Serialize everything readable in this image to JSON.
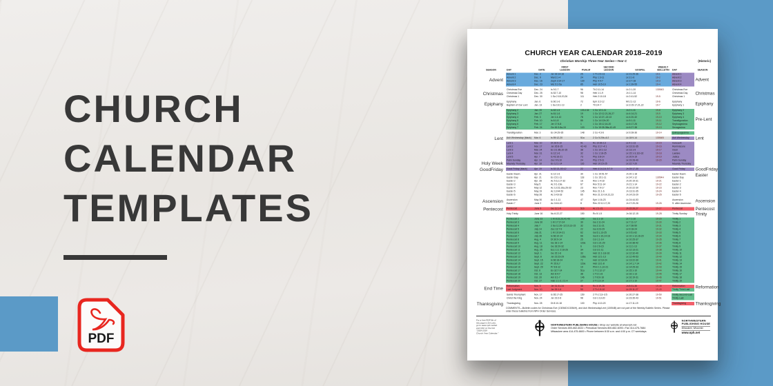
{
  "hero": {
    "line1": "CHURCH",
    "line2": "CALENDAR",
    "line3": "TEMPLATES"
  },
  "pdf": {
    "label": "PDF"
  },
  "colors": {
    "panel_blue": "#5b9ac7",
    "hl_blue": "#69aadd",
    "hl_green": "#64bf8e",
    "hl_purple": "#9c8ac3",
    "hl_red": "#f25f6b",
    "hl_gray": "#d9d9d9",
    "pdf_red": "#e8261f",
    "title_gray": "#383838"
  },
  "calendar": {
    "title": "CHURCH YEAR CALENDAR 2018–2019",
    "subtitle": "Christian Worship Three-Year Series—Year C",
    "subtitle_right": "(Historic)",
    "columns": [
      "SEASON",
      "DAY",
      "DATE",
      "FIRST\nLESSON",
      "PSALM",
      "SECOND\nLESSON",
      "GOSPEL",
      "WEEKLY\nBULLETIN",
      "DAY",
      "SEASON"
    ],
    "sections": [
      {
        "left": "Advent",
        "right": "Advent",
        "rows": [
          [
            "Advent 1",
            "Dec. 2",
            "Jer 33:14-16",
            "25",
            "1 Th 3:9-13",
            "Lk 21:25-36",
            "19-1",
            "Advent 1",
            "blue",
            "purple"
          ],
          [
            "Advent 2",
            "Dec. 9",
            "Mal 3:1-4",
            "24",
            "Php 1:3-11",
            "Lk 3:1-6",
            "19-2",
            "Advent 2",
            "blue",
            "purple"
          ],
          [
            "Advent 3",
            "Dec. 16",
            "Zeph 3:14-17",
            "130",
            "Php 4:4-7",
            "Lk 3:7-18",
            "19-3",
            "Advent 3",
            "blue",
            "purple"
          ],
          [
            "Advent 4",
            "Dec. 23",
            "Mic 5:2-5a",
            "85",
            "Heb 10:5-10",
            "Lk 1:39-55",
            "19-4",
            "Advent 4",
            "blue",
            "purple"
          ]
        ]
      },
      {
        "left": "Christmas",
        "right": "Christmas",
        "rows": [
          [
            "Christmas Eve",
            "Dec. 24",
            "Is 9:2-7",
            "96",
            "Tit 2:11-14",
            "Lk 2:1-20",
            "13054D",
            "Christmas Eve",
            "",
            ""
          ],
          [
            "Christmas Day",
            "Dec. 25",
            "Is 52:7-10",
            "98",
            "Heb 1:1-9",
            "Jn 1:1-14",
            "",
            "Christmas Day",
            "",
            ""
          ],
          [
            "Christmas 1",
            "Dec. 30",
            "1 Sa 2:18-20,26",
            "111",
            "Heb 2:10-18",
            "Lk 2:41-52",
            "19-5",
            "Christmas 1",
            "",
            ""
          ]
        ]
      },
      {
        "left": "Epiphany",
        "right": "Epiphany",
        "rows": [
          [
            "Epiphany",
            "Jan. 6",
            "Is 60:1-6",
            "72",
            "Eph 3:2-12",
            "Mt 2:1-12",
            "19-6",
            "Epiphany",
            "",
            ""
          ],
          [
            "Baptism of Our Lord",
            "Jan. 13",
            "1 Sa 16:1-13",
            "2",
            "Tit 3:4-7",
            "Lk 3:15-17,21,22",
            "19-7",
            "Epiphany 1",
            "",
            ""
          ]
        ]
      },
      {
        "left": "",
        "right": "Pre-Lent",
        "rows": [
          [
            "Epiphany 2",
            "Jan. 20",
            "Is 62:1-5",
            "133-134",
            "1 Co 12:1-11",
            "Jn 2:1-11",
            "19-8",
            "Epiphany 2",
            "green",
            "green"
          ],
          [
            "Epiphany 3",
            "Jan. 27",
            "Is 61:1-6",
            "19",
            "1 Co 12:12-21,26,27",
            "Lk 4:14-21",
            "19-9",
            "Epiphany 3",
            "green",
            "green"
          ],
          [
            "Epiphany 4",
            "Feb. 3",
            "Jer 1:4-10",
            "78",
            "1 Co 12:27–13:13",
            "Lk 4:20-32",
            "19-10",
            "Epiphany 4",
            "green",
            "green"
          ],
          [
            "Epiphany 5",
            "Feb. 10",
            "Is 6:1-8",
            "85",
            "1 Co 14:12b-20",
            "Lk 5:1-11",
            "19-11",
            "Transfiguration",
            "green",
            "green"
          ],
          [
            "Epiphany 6",
            "Feb. 17",
            "Jer 17:5-8",
            "1",
            "1 Co 15:12,16-20",
            "Lk 6:17-26",
            "19-12",
            "Septuagesima",
            "green",
            "green"
          ],
          [
            "Epiphany 7",
            "Feb. 24",
            "Ge 45:3-8a,15",
            "103",
            "1 Co 15:35-38a,42-49",
            "Lk 6:27-38",
            "19-13",
            "Sexagesima",
            "green",
            "green"
          ]
        ]
      },
      {
        "left": "",
        "right": "",
        "rows": [
          [
            "Transfiguration",
            "Mar. 3",
            "Ex 34:29-35",
            "148",
            "2 Co 4:3-6",
            "Lk 9:28-36",
            "19-14",
            "Quinquagesima",
            "",
            "green"
          ]
        ]
      },
      {
        "left": "Lent",
        "right": "Lent",
        "rows": [
          [
            "Ash Wednesday (black)",
            "Mar. 6",
            "Is 59:12-20",
            "51a",
            "2 Co 5:20b–6:2",
            "Lk 18:9-14",
            "13054B",
            "Ash Wednesday",
            "gray",
            "purple"
          ]
        ]
      },
      {
        "left": "Holy Week",
        "lv": "bottom",
        "right": "",
        "rows": [
          [
            "Lent 1",
            "Mar. 10",
            "Dt 26:5-10",
            "91",
            "Ro 10:8b-13",
            "Lk 4:1-13",
            "19-15",
            "Invocavit",
            "purple",
            "purple"
          ],
          [
            "Lent 2",
            "Mar. 17",
            "Jer 26:8-15",
            "42-43",
            "Php 3:17–4:1",
            "Lk 13:31-35",
            "19-16",
            "Reminiscere",
            "purple",
            "purple"
          ],
          [
            "Lent 3",
            "Mar. 24",
            "Ex 3:1-8b,10-15",
            "38",
            "1 Co 10:1-13",
            "Lk 13:1-9",
            "19-17",
            "Oculi",
            "purple",
            "purple"
          ],
          [
            "Lent 4",
            "Mar. 31",
            "Is 12:1-6",
            "32",
            "1 Co 1:18-25",
            "Lk 15:1-3,11b-32",
            "19-18",
            "Laetare",
            "purple",
            "purple"
          ],
          [
            "Lent 5",
            "Apr. 7",
            "Is 43:16-21",
            "73",
            "Php 3:8-14",
            "Lk 20:9-19",
            "19-19",
            "Judica",
            "purple",
            "purple"
          ],
          [
            "Palm Sunday",
            "Apr. 14",
            "Zec 9:9,10",
            "24",
            "Php 2:5-11",
            "Lk 19:28-40",
            "19-20",
            "Palm Sunday",
            "purple",
            "purple"
          ],
          [
            "Maundy Thursday",
            "Apr. 18",
            "Ex 12:1-14",
            "116",
            "Heb 10:15-25",
            "Lk 22:7-20",
            "",
            "Maundy Thursday",
            "purple",
            "purple"
          ]
        ]
      },
      {
        "left": "GoodFriday",
        "right": "GoodFriday",
        "rows": [
          [
            "Good Friday (black)",
            "Apr. 19",
            "Is 52:13–53:12",
            "22",
            "Heb 4:14-16; 5:7-9",
            "Jn 19:17-30",
            "",
            "Good Friday",
            "purple",
            "purple"
          ]
        ]
      },
      {
        "left": "",
        "right": "Easter",
        "rv": "top",
        "rows": [
          [
            "Easter Dawn",
            "Apr. 21",
            "Is 12:1-6",
            "30",
            "1 Co 15:51-57",
            "Jn 20:1-18",
            "",
            "Easter Dawn",
            "",
            ""
          ],
          [
            "Easter Day",
            "Apr. 21",
            "Ex 15:1-11",
            "118",
            "1 Co 15:1-11",
            "Lk 24:1-12",
            "13054H",
            "Easter Day",
            "",
            ""
          ],
          [
            "Easter 2",
            "Apr. 28",
            "Ac 5:12,17-32",
            "16",
            "Rev 1:4-18",
            "Jn 20:19-31",
            "19-21",
            "Easter 1",
            "",
            ""
          ],
          [
            "Easter 3",
            "May 5",
            "Ac 9:1-19a",
            "67",
            "Rev 5:11-14",
            "Jn 21:1-14",
            "19-22",
            "Easter 2",
            "",
            ""
          ],
          [
            "Easter 4",
            "May 12",
            "Ac 13:15,16a,26-33",
            "23",
            "Rev 7:9-17",
            "Jn 10:22-30",
            "19-23",
            "Easter 3",
            "",
            ""
          ],
          [
            "Easter 5",
            "May 19",
            "Ac 13:44-52",
            "145",
            "Rev 21:1-6",
            "Jn 13:31-35",
            "19-24",
            "Easter 4",
            "",
            ""
          ],
          [
            "Easter 6",
            "May 26",
            "Ac 14:8-18",
            "65",
            "Rev 21:10-14,22,23",
            "Jn 14:23-29",
            "19-25",
            "Easter 5",
            "",
            ""
          ]
        ]
      },
      {
        "left": "Ascension",
        "lv": "top",
        "right": "Ascension",
        "rv": "top",
        "rows": [
          [
            "Ascension",
            "May 30",
            "Ac 1:1-11",
            "47",
            "Eph 1:16-23",
            "Lk 24:44-53",
            "",
            "Ascension",
            "",
            ""
          ],
          [
            "Easter 7",
            "June 2",
            "Ac 16:6-10",
            "8",
            "Rev 22:12-17,20",
            "Jn 17:20-26",
            "19-26",
            "S. after Ascension",
            "",
            ""
          ]
        ]
      },
      {
        "left": "Pentecost",
        "right": "Pentecost",
        "rows": [
          [
            "Pentecost",
            "June 9",
            "Ge 11:1-9",
            "51b",
            "Ac 2:1-21",
            "Jn 15:26,27",
            "19-27",
            "Pentecost",
            "red",
            "red"
          ]
        ]
      },
      {
        "left": "",
        "right": "Trinity",
        "rows": [
          [
            "Holy Trinity",
            "June 16",
            "Nu 6:22-27",
            "150",
            "Ro 5:1-5",
            "Jn 16:12-15",
            "19-28",
            "Trinity Sunday",
            "",
            ""
          ]
        ]
      },
      {
        "left": "",
        "right": "",
        "rows": [
          [
            "Pentecost 2",
            "June 23",
            "1 Ki 8:22,23,41-43",
            "100",
            "Ga 1:1-10",
            "Lk 7:1-10",
            "19-29",
            "Trinity 1",
            "green",
            "green"
          ],
          [
            "Pentecost 3",
            "June 30",
            "1 Ki 17:17-24",
            "30",
            "Ga 1:11-24",
            "Lk 7:11-17",
            "19-30",
            "Trinity 2",
            "green",
            "green"
          ],
          [
            "Pentecost 4",
            "July 7",
            "2 Sa 11:26–12:10,13-15",
            "32",
            "Ga 2:11-21",
            "Lk 7:36-50",
            "19-31",
            "Trinity 3",
            "green",
            "green"
          ],
          [
            "Pentecost 5",
            "July 14",
            "Zec 13:7-9",
            "22",
            "Ga 3:23-29",
            "Lk 9:18-24",
            "19-32",
            "Trinity 4",
            "green",
            "green"
          ],
          [
            "Pentecost 6",
            "July 21",
            "1 Ki 19:14-21",
            "62",
            "Ga 5:1,13-25",
            "Lk 9:51-62",
            "19-33",
            "Trinity 5",
            "green",
            "green"
          ],
          [
            "Pentecost 7",
            "July 28",
            "Is 66:10-14",
            "66",
            "Ga 6:1-10,14-16",
            "Lk 10:1-12,16-20",
            "19-34",
            "Trinity 6",
            "green",
            "green"
          ],
          [
            "Pentecost 8",
            "Aug. 4",
            "Dt 30:9-14",
            "25",
            "Col 1:1-14",
            "Lk 10:25-37",
            "19-35",
            "Trinity 7",
            "green",
            "green"
          ],
          [
            "Pentecost 9",
            "Aug. 11",
            "Ge 18:1-14",
            "119a",
            "Col 1:21-29",
            "Lk 10:38-42",
            "19-36",
            "Trinity 8",
            "green",
            "green"
          ],
          [
            "Pentecost 10",
            "Aug. 18",
            "Ge 18:20-32",
            "6",
            "Col 2:6-15",
            "Lk 11:1-13",
            "19-37",
            "Trinity 9",
            "green",
            "green"
          ],
          [
            "Pentecost 11",
            "Aug. 25",
            "Ecc 1:2; 2:18-26",
            "34",
            "Col 3:1-11",
            "Lk 12:13-21",
            "19-38",
            "Trinity 10",
            "green",
            "green"
          ],
          [
            "Pentecost 12",
            "Sept. 1",
            "Ge 15:1-6",
            "33",
            "Heb 11:1-3,8-16",
            "Lk 12:32-40",
            "19-39",
            "Trinity 11",
            "green",
            "green"
          ],
          [
            "Pentecost 13",
            "Sept. 8",
            "Jer 23:23-29",
            "136a",
            "Heb 12:1-13",
            "Lk 12:49-53",
            "19-40",
            "Trinity 12",
            "green",
            "green"
          ],
          [
            "Pentecost 14",
            "Sept. 15",
            "Is 66:18-24",
            "72",
            "Heb 12:18-24",
            "Lk 13:22-30",
            "19-41",
            "Trinity 13",
            "green",
            "green"
          ],
          [
            "Pentecost 15",
            "Sept. 22",
            "Pr 25:6,7",
            "119a",
            "Heb 13:1-8",
            "Lk 14:1,7-14",
            "19-42",
            "Trinity 14",
            "green",
            "green"
          ],
          [
            "Pentecost 16",
            "Sept. 29",
            "Pr 9:8-12",
            "19",
            "Phm 1:1,10-21",
            "Lk 14:25-33",
            "19-43",
            "Trinity 15",
            "green",
            "green"
          ],
          [
            "Pentecost 17",
            "Oct. 6",
            "Ex 32:7-14",
            "51a",
            "1 Ti 1:12-17",
            "Lk 15:1-10",
            "19-44",
            "Trinity 16",
            "green",
            "green"
          ],
          [
            "Pentecost 18",
            "Oct. 13",
            "Am 8:4-7",
            "38",
            "1 Ti 2:1-8",
            "Lk 16:1-13",
            "19-45",
            "Trinity 17",
            "green",
            "green"
          ],
          [
            "Pentecost 19",
            "Oct. 20",
            "Am 6:1-7",
            "146",
            "1 Ti 6:6-16",
            "Lk 16:19-31",
            "19-46",
            "Trinity 18",
            "green",
            "green"
          ],
          [
            "Pentecost 20",
            "Oct. 27",
            "Hab 1:1-3; 2:1-4",
            "27",
            "2 Ti 1:3-14",
            "Lk 17:1-10",
            "19-47",
            "Trinity 19",
            "green",
            "green"
          ]
        ]
      },
      {
        "left": "End Time",
        "right": "Reformation",
        "rv": "top",
        "rows": [
          [
            "Reformation",
            "Nov. 3",
            "Jer 31:31-34",
            "46",
            "Ro 3:19-28",
            "Jn 8:31-36",
            "19-48",
            "Reformation",
            "red",
            "red"
          ],
          [
            "Last Judgment",
            "Nov. 10",
            "Jer 26:1-6",
            "90",
            "2 Th 1:5-10",
            "Lk 19:11-27",
            "19-49",
            "Trinity Third-Last",
            "red",
            "green"
          ]
        ]
      },
      {
        "left": "",
        "right": "",
        "rows": [
          [
            "Saints Triumphant",
            "Nov. 17",
            "Is 65:17-25",
            "150",
            "2 Th 2:13–3:5",
            "Lk 20:27-38",
            "19-50",
            "Trinity Second-Last",
            "",
            "green"
          ],
          [
            "Christ the King",
            "Nov. 24",
            "Jer 23:2-6",
            "98",
            "Col 1:13-20",
            "Lk 23:35-43",
            "19-51",
            "Trinity Last",
            "",
            "green"
          ]
        ]
      },
      {
        "left": "Thanksgiving",
        "right": "Thanksgiving",
        "rows": [
          [
            "Thanksgiving",
            "Nov. 28",
            "Dt 8:10-18",
            "100",
            "Php 4:10-20",
            "Lk 17:11-19",
            "",
            "Thanksgiving",
            "",
            "red"
          ]
        ]
      }
    ],
    "comments": "COMMENTS—Bulletin codes for Christmas Eve (13054D/13054H), and Ash Wednesday/Lent (13054B) are not part of the Weekly Bulletin Series. Please order these bulletins from NPH Order Services.",
    "footer": {
      "note_lines": [
        "For a free PDF file of",
        "this page in full color,",
        "go to www.nph.net/wb",
        "and click on the link",
        "\"2018-2019",
        "Church Year Calendar.\""
      ],
      "center": {
        "l1_bold": "NORTHWESTERN PUBLISHING HOUSE",
        "l1_rest": " • Shop our website at www.nph.net",
        "l2": "Order Services 800-662-6022 • Periodical Services 800-662-6093 • Fax 414-475-7684",
        "l3": "Milwaukee area 414-475-6600 • Phone between 8:30 a.m. and 4:00 p.m. CT weekdays"
      },
      "right": {
        "l1": "NORTHWESTERN",
        "l2": "PUBLISHING HOUSE",
        "city": "Milwaukee, Wisconsin",
        "url": "www.nph.net"
      }
    }
  }
}
